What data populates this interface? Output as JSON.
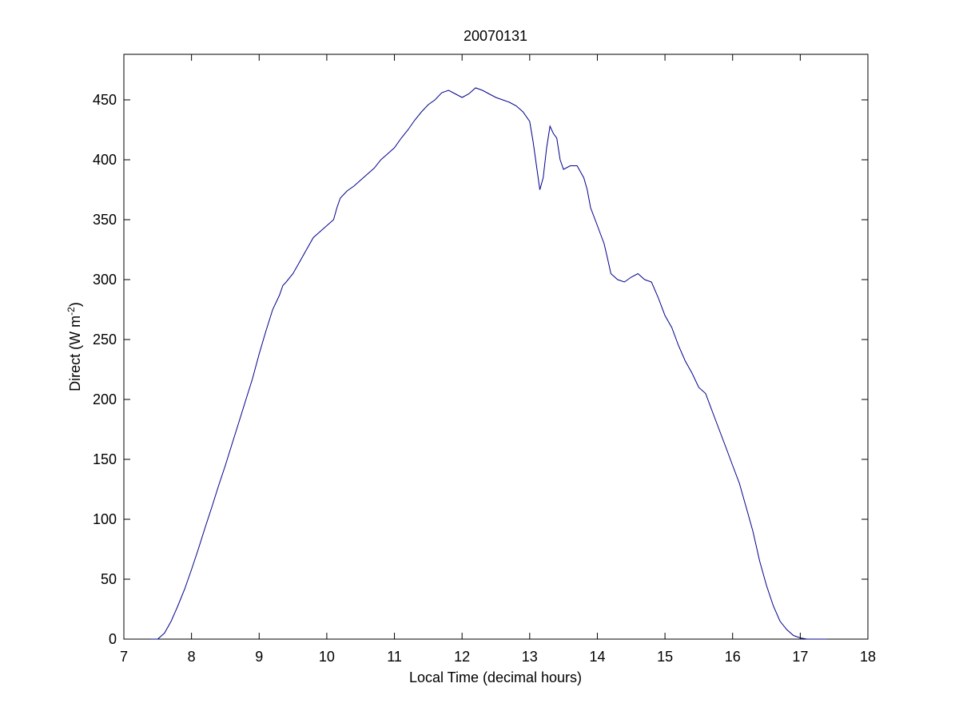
{
  "chart_data": {
    "type": "line",
    "title": "20070131",
    "xlabel": "Local Time (decimal hours)",
    "ylabel": "Direct (W m",
    "ylabel_sup": "-2",
    "ylabel_close": ")",
    "xlim": [
      7,
      18
    ],
    "ylim": [
      0,
      488
    ],
    "xticks": [
      7,
      8,
      9,
      10,
      11,
      12,
      13,
      14,
      15,
      16,
      17,
      18
    ],
    "yticks": [
      0,
      50,
      100,
      150,
      200,
      250,
      300,
      350,
      400,
      450
    ],
    "grid": false,
    "line_color": "#00008b",
    "series": [
      {
        "x": [
          7.4,
          7.5,
          7.6,
          7.7,
          7.8,
          7.9,
          8.0,
          8.1,
          8.2,
          8.3,
          8.4,
          8.5,
          8.6,
          8.7,
          8.8,
          8.9,
          9.0,
          9.1,
          9.2,
          9.3,
          9.35,
          9.4,
          9.5,
          9.6,
          9.7,
          9.8,
          9.9,
          10.0,
          10.1,
          10.15,
          10.2,
          10.3,
          10.4,
          10.5,
          10.6,
          10.7,
          10.8,
          10.9,
          11.0,
          11.1,
          11.2,
          11.3,
          11.4,
          11.5,
          11.6,
          11.7,
          11.8,
          11.9,
          12.0,
          12.1,
          12.2,
          12.3,
          12.4,
          12.5,
          12.6,
          12.7,
          12.8,
          12.9,
          13.0,
          13.05,
          13.1,
          13.15,
          13.2,
          13.25,
          13.3,
          13.35,
          13.4,
          13.45,
          13.5,
          13.6,
          13.7,
          13.8,
          13.85,
          13.9,
          14.0,
          14.1,
          14.15,
          14.2,
          14.3,
          14.4,
          14.5,
          14.6,
          14.7,
          14.8,
          14.9,
          15.0,
          15.1,
          15.2,
          15.3,
          15.4,
          15.5,
          15.6,
          15.7,
          15.8,
          15.9,
          16.0,
          16.1,
          16.2,
          16.3,
          16.4,
          16.5,
          16.6,
          16.7,
          16.8,
          16.9,
          17.0,
          17.1,
          17.2,
          17.3,
          17.4
        ],
        "y": [
          0,
          0,
          5,
          15,
          28,
          42,
          58,
          75,
          93,
          110,
          128,
          145,
          163,
          181,
          199,
          217,
          238,
          257,
          275,
          287,
          295,
          298,
          305,
          315,
          325,
          335,
          340,
          345,
          350,
          360,
          368,
          374,
          378,
          383,
          388,
          393,
          400,
          405,
          410,
          418,
          425,
          433,
          440,
          446,
          450,
          456,
          458,
          455,
          452,
          455,
          460,
          458,
          455,
          452,
          450,
          448,
          445,
          440,
          432,
          415,
          395,
          375,
          385,
          410,
          428,
          422,
          418,
          400,
          392,
          395,
          395,
          385,
          375,
          360,
          345,
          330,
          318,
          305,
          300,
          298,
          302,
          305,
          300,
          298,
          285,
          270,
          260,
          245,
          232,
          222,
          210,
          205,
          190,
          175,
          160,
          145,
          130,
          110,
          90,
          65,
          45,
          28,
          15,
          8,
          3,
          1,
          0,
          0,
          0,
          0
        ]
      }
    ]
  }
}
